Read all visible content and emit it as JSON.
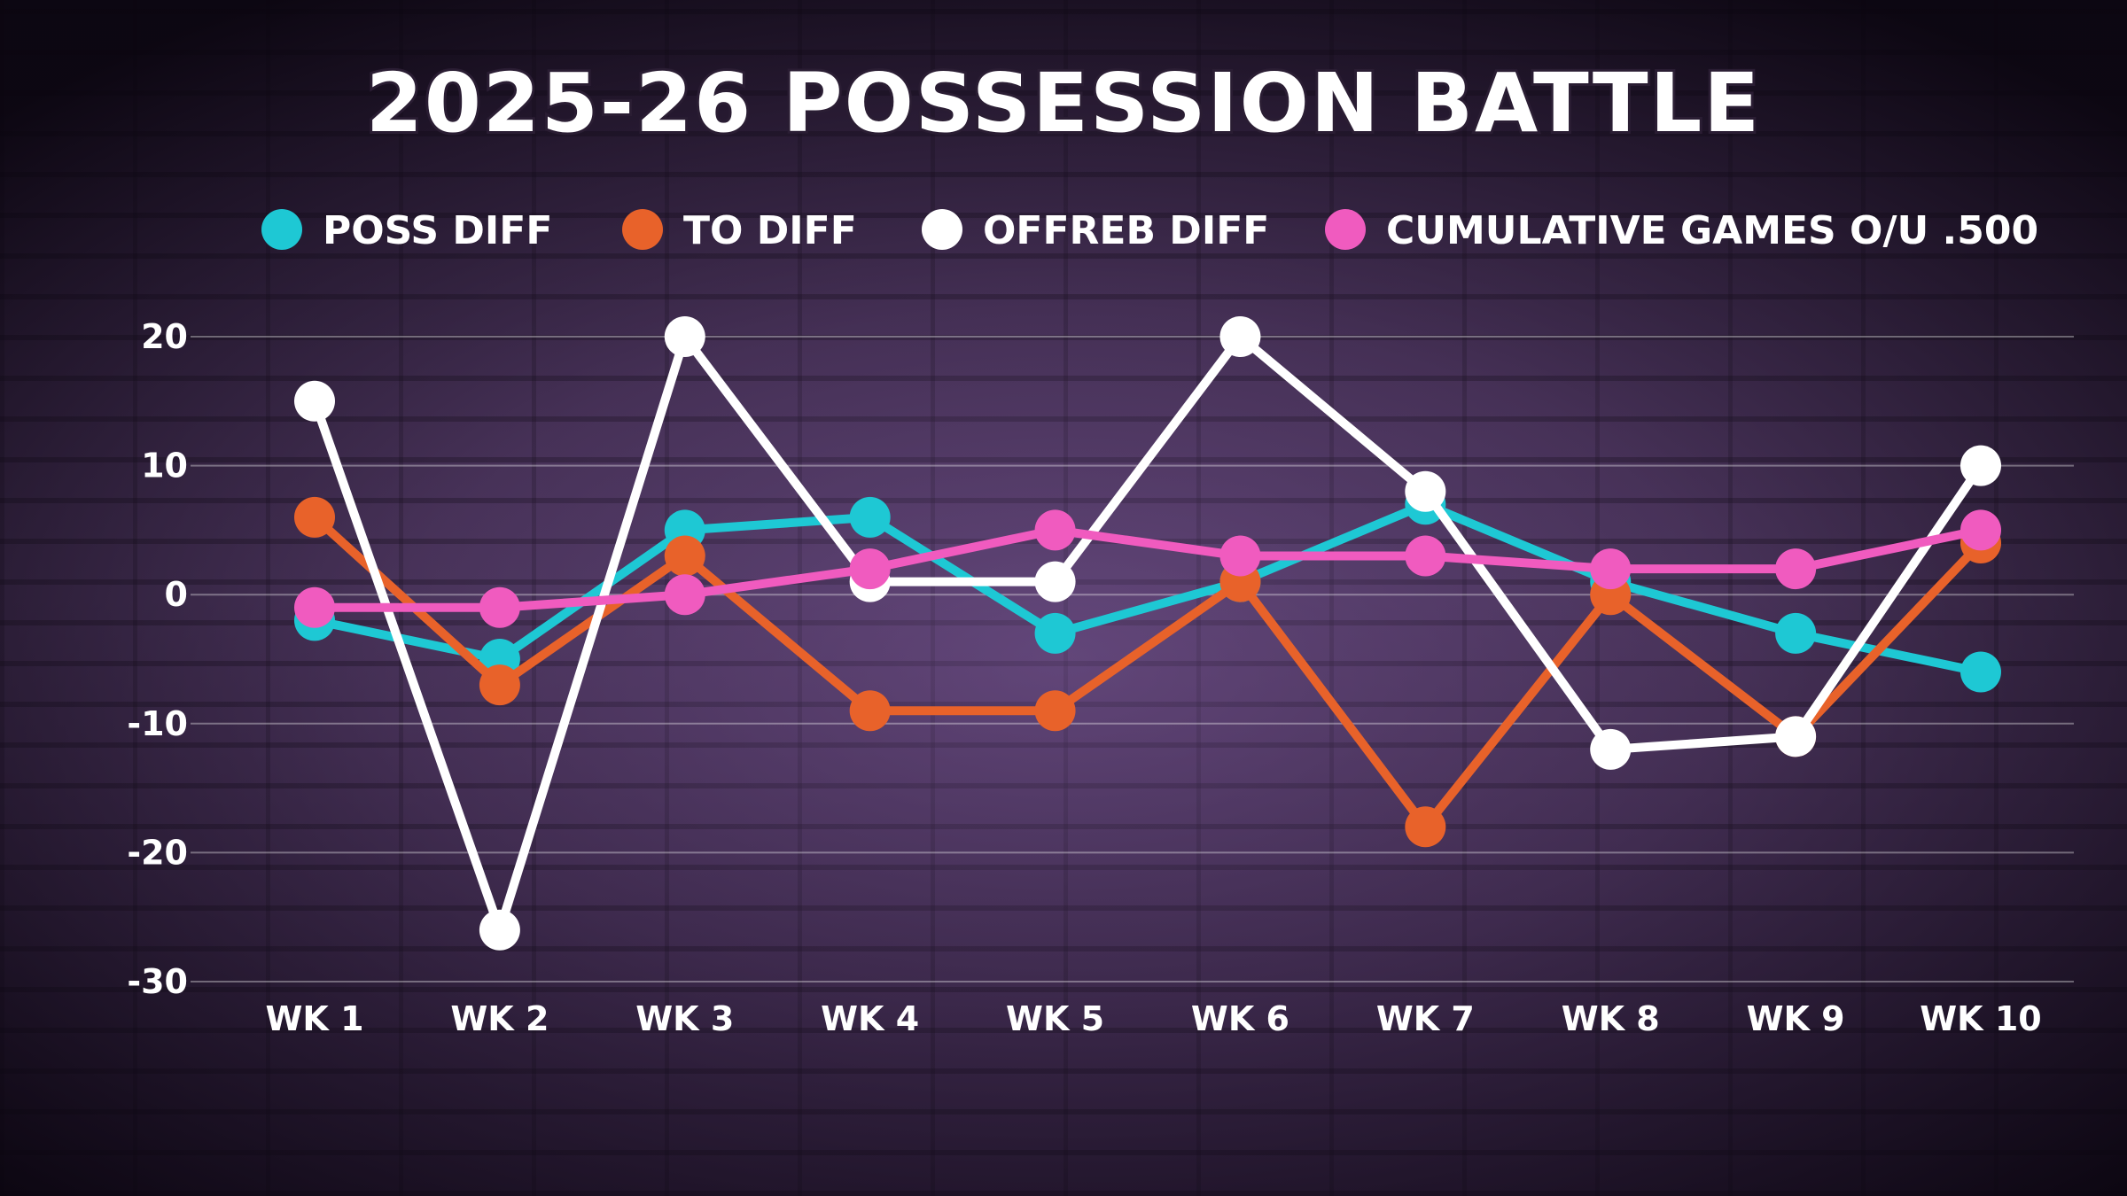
{
  "chart_data": {
    "type": "line",
    "title": "2025-26 POSSESSION BATTLE",
    "categories": [
      "WK 1",
      "WK 2",
      "WK 3",
      "WK 4",
      "WK 5",
      "WK 6",
      "WK 7",
      "WK 8",
      "WK 9",
      "WK 10"
    ],
    "ylim": [
      -30,
      20
    ],
    "yticks": [
      20,
      10,
      0,
      -10,
      -20,
      -30
    ],
    "grid": true,
    "legend_position": "top",
    "series": [
      {
        "name": "POSS DIFF",
        "color": "#1ec8d4",
        "values": [
          -2,
          -5,
          5,
          6,
          -3,
          1,
          7,
          1,
          -3,
          -6
        ]
      },
      {
        "name": "TO DIFF",
        "color": "#e8622a",
        "values": [
          6,
          -7,
          3,
          -9,
          -9,
          1,
          -18,
          0,
          -11,
          4
        ]
      },
      {
        "name": "OFFREB DIFF",
        "color": "#ffffff",
        "values": [
          15,
          -26,
          20,
          1,
          1,
          20,
          8,
          -12,
          -11,
          10
        ]
      },
      {
        "name": "CUMULATIVE GAMES O/U .500",
        "color": "#f05bbf",
        "values": [
          -1,
          -1,
          0,
          2,
          5,
          3,
          3,
          2,
          2,
          5
        ]
      }
    ]
  }
}
